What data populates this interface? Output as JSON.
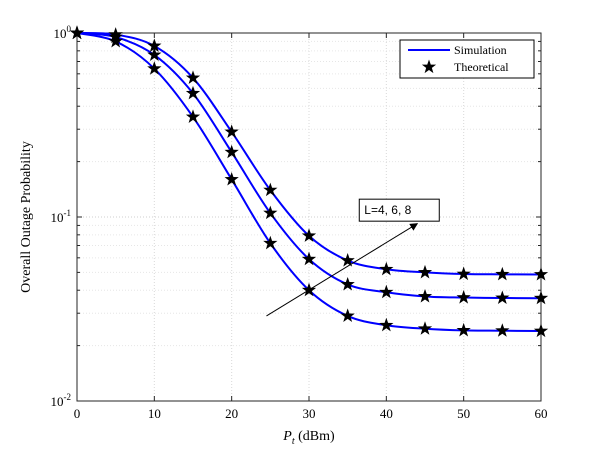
{
  "chart_data": {
    "type": "line",
    "title": "",
    "xlabel": {
      "main": "P",
      "sub": "t",
      "unit": " (dBm)"
    },
    "ylabel": "Overall Outage Probability",
    "xlim": [
      0,
      60
    ],
    "ylim": [
      0.01,
      1
    ],
    "yscale": "log",
    "grid": true,
    "x_ticks": [
      0,
      10,
      20,
      30,
      40,
      50,
      60
    ],
    "y_ticks": [
      {
        "value": 1,
        "base": "10",
        "exp": "0"
      },
      {
        "value": 0.1,
        "base": "10",
        "exp": "-1"
      },
      {
        "value": 0.01,
        "base": "10",
        "exp": "-2"
      }
    ],
    "legend": {
      "position": "top-right",
      "entries": [
        {
          "label": "Simulation",
          "style": "line"
        },
        {
          "label": "Theoretical",
          "style": "star"
        }
      ]
    },
    "line_color": "#0000ff",
    "marker_color": "#000000",
    "annotation": {
      "text": "L=4, 6, 8",
      "arrow_from": [
        24.5,
        0.029
      ],
      "arrow_to": [
        44,
        0.092
      ],
      "box_anchor": [
        36.5,
        0.125
      ]
    },
    "series": [
      {
        "x": [
          0,
          5,
          10,
          15,
          20,
          25,
          30,
          35,
          40,
          45,
          50,
          55,
          60
        ],
        "y": [
          1.0,
          0.9,
          0.64,
          0.35,
          0.16,
          0.072,
          0.04,
          0.029,
          0.0258,
          0.0247,
          0.0242,
          0.0241,
          0.024
        ]
      },
      {
        "x": [
          0,
          5,
          10,
          15,
          20,
          25,
          30,
          35,
          40,
          45,
          50,
          55,
          60
        ],
        "y": [
          1.0,
          0.95,
          0.76,
          0.47,
          0.225,
          0.105,
          0.059,
          0.043,
          0.039,
          0.037,
          0.0365,
          0.0363,
          0.0362
        ]
      },
      {
        "x": [
          0,
          5,
          10,
          15,
          20,
          25,
          30,
          35,
          40,
          45,
          50,
          55,
          60
        ],
        "y": [
          1.0,
          0.98,
          0.85,
          0.57,
          0.29,
          0.14,
          0.079,
          0.058,
          0.052,
          0.05,
          0.049,
          0.0488,
          0.0487
        ]
      }
    ]
  }
}
